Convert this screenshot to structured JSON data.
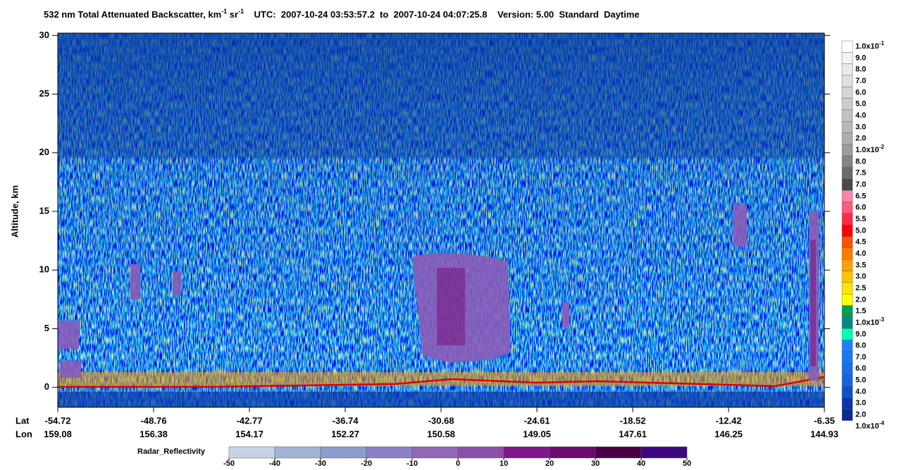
{
  "chart_data": {
    "type": "heatmap",
    "title": [
      {
        "text": "532 nm Total Attenuated Backscatter, km"
      },
      {
        "text": "-1",
        "sup": true
      },
      {
        "text": " sr"
      },
      {
        "text": "-1",
        "sup": true
      },
      {
        "text": "    UTC:  2007-10-24 03:53:57.2  to  2007-10-24 04:07:25.8    Version: 5.00  Standard  Daytime"
      }
    ],
    "ylabel": "Altitude, km",
    "ylim": [
      -1.7,
      30.2
    ],
    "yticks": [
      0,
      5,
      10,
      15,
      20,
      25,
      30
    ],
    "x_row_labels": [
      "Lat",
      "Lon"
    ],
    "lat": [
      "-54.72",
      "-48.76",
      "-42.77",
      "-36.74",
      "-30.68",
      "-24.61",
      "-18.52",
      "-12.42",
      "-6.35"
    ],
    "lon": [
      "159.08",
      "156.38",
      "154.17",
      "152.27",
      "150.58",
      "149.05",
      "147.61",
      "146.25",
      "144.93"
    ],
    "colorbar": {
      "labels": [
        {
          "text": "1.0x10",
          "exp": "-1"
        },
        {
          "text": "9.0"
        },
        {
          "text": "8.0"
        },
        {
          "text": "7.0"
        },
        {
          "text": "6.0"
        },
        {
          "text": "5.0"
        },
        {
          "text": "4.0"
        },
        {
          "text": "3.0"
        },
        {
          "text": "2.0"
        },
        {
          "text": "1.0x10",
          "exp": "-2"
        },
        {
          "text": "8.0"
        },
        {
          "text": "7.5"
        },
        {
          "text": "7.0"
        },
        {
          "text": "6.5"
        },
        {
          "text": "6.0"
        },
        {
          "text": "5.5"
        },
        {
          "text": "5.0"
        },
        {
          "text": "4.5"
        },
        {
          "text": "4.0"
        },
        {
          "text": "3.5"
        },
        {
          "text": "3.0"
        },
        {
          "text": "2.5"
        },
        {
          "text": "2.0"
        },
        {
          "text": "1.5"
        },
        {
          "text": "1.0x10",
          "exp": "-3"
        },
        {
          "text": "9.0"
        },
        {
          "text": "8.0"
        },
        {
          "text": "7.0"
        },
        {
          "text": "6.0"
        },
        {
          "text": "5.0"
        },
        {
          "text": "4.0"
        },
        {
          "text": "3.0"
        },
        {
          "text": "2.0"
        },
        {
          "text": "1.0x10",
          "exp": "-4"
        }
      ],
      "colors": [
        "#ffffff",
        "#f4f4f4",
        "#eaeaea",
        "#e0e0e0",
        "#d6d6d6",
        "#cccccc",
        "#c2c2c2",
        "#b8b8b8",
        "#aeaeae",
        "#9c9c9c",
        "#858585",
        "#6b6b6b",
        "#4a4a4a",
        "#ff82a8",
        "#ff5a78",
        "#ff2a48",
        "#ff0000",
        "#ff5000",
        "#ff7c00",
        "#ffa000",
        "#ffc400",
        "#ffe400",
        "#ffff00",
        "#00a050",
        "#008a80",
        "#00ffb0",
        "#1e82ff",
        "#1a78f0",
        "#1870e8",
        "#1466e0",
        "#0f50c8",
        "#0838a8",
        "#062a90"
      ]
    },
    "radar_colorbar": {
      "label": "Radar_Reflectivity",
      "lim": [
        -50,
        50
      ],
      "ticks": [
        -50,
        -40,
        -30,
        -20,
        -10,
        0,
        10,
        20,
        30,
        40,
        50
      ],
      "colors": [
        "#c4d4e4",
        "#a2b4d4",
        "#8c9ccc",
        "#8e80c4",
        "#9068b4",
        "#8a50a8",
        "#80168c",
        "#6a0c6e",
        "#4a0046",
        "#3c0880"
      ]
    }
  }
}
